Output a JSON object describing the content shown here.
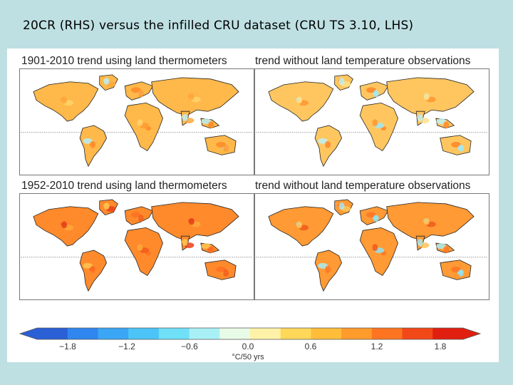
{
  "slide": {
    "title": "20CR (RHS) versus the infilled CRU dataset (CRU TS 3.10, LHS)"
  },
  "panels": [
    {
      "title": "1901-2010 trend using land thermometers",
      "palette": "warm-mild"
    },
    {
      "title": "trend without land temperature observations",
      "palette": "mixed"
    },
    {
      "title": "1952-2010 trend using land thermometers",
      "palette": "warm-strong"
    },
    {
      "title": "trend without land temperature observations",
      "palette": "mixed-strong"
    }
  ],
  "colorbar": {
    "ticks": [
      "−1.8",
      "−1.2",
      "−0.6",
      "0.0",
      "0.6",
      "1.2",
      "1.8"
    ],
    "unit": "°C/50 yrs",
    "colors": [
      "#2a5fd6",
      "#2f86ee",
      "#3aa6f5",
      "#4cc4f7",
      "#6fe0f8",
      "#a9f0f6",
      "#e8fbe6",
      "#fff2a8",
      "#ffd85a",
      "#ffbd3a",
      "#ff9b2a",
      "#ff7420",
      "#f24818",
      "#e01f10"
    ]
  }
}
